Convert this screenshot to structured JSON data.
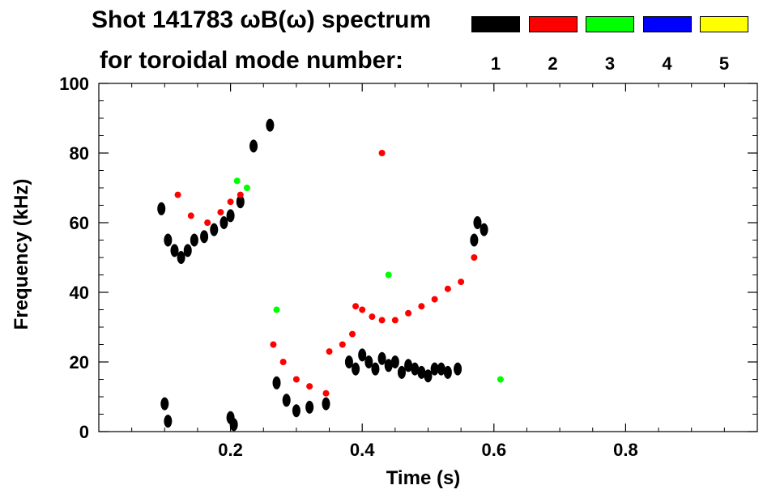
{
  "chart_data": {
    "type": "spectrogram",
    "title": "Shot 141783 ωB(ω) spectrum",
    "subtitle": "for toroidal mode number:",
    "xlabel": "Time (s)",
    "ylabel": "Frequency (kHz)",
    "xlim": [
      0.0,
      1.0
    ],
    "ylim": [
      0,
      100
    ],
    "xticks": [
      "0.2",
      "0.4",
      "0.6",
      "0.8"
    ],
    "xtick_values": [
      0.2,
      0.4,
      0.6,
      0.8
    ],
    "yticks": [
      "0",
      "20",
      "40",
      "60",
      "80",
      "100"
    ],
    "ytick_values": [
      0,
      20,
      40,
      60,
      80,
      100
    ],
    "legend": [
      {
        "label": "1",
        "color": "#000000"
      },
      {
        "label": "2",
        "color": "#ff0000"
      },
      {
        "label": "3",
        "color": "#00ff00"
      },
      {
        "label": "4",
        "color": "#0000ff"
      },
      {
        "label": "5",
        "color": "#ffff00"
      }
    ],
    "series": [
      {
        "name": "1",
        "color": "#000000",
        "points": [
          [
            0.095,
            64
          ],
          [
            0.105,
            55
          ],
          [
            0.115,
            52
          ],
          [
            0.125,
            50
          ],
          [
            0.135,
            52
          ],
          [
            0.145,
            55
          ],
          [
            0.16,
            56
          ],
          [
            0.175,
            58
          ],
          [
            0.19,
            60
          ],
          [
            0.2,
            62
          ],
          [
            0.215,
            66
          ],
          [
            0.235,
            82
          ],
          [
            0.26,
            88
          ],
          [
            0.27,
            14
          ],
          [
            0.285,
            9
          ],
          [
            0.3,
            6
          ],
          [
            0.32,
            7
          ],
          [
            0.345,
            8
          ],
          [
            0.38,
            20
          ],
          [
            0.39,
            18
          ],
          [
            0.4,
            22
          ],
          [
            0.41,
            20
          ],
          [
            0.42,
            18
          ],
          [
            0.43,
            21
          ],
          [
            0.44,
            19
          ],
          [
            0.45,
            20
          ],
          [
            0.46,
            17
          ],
          [
            0.47,
            19
          ],
          [
            0.48,
            18
          ],
          [
            0.49,
            17
          ],
          [
            0.5,
            16
          ],
          [
            0.51,
            18
          ],
          [
            0.52,
            18
          ],
          [
            0.53,
            17
          ],
          [
            0.545,
            18
          ],
          [
            0.57,
            55
          ],
          [
            0.575,
            60
          ],
          [
            0.585,
            58
          ],
          [
            0.1,
            8
          ],
          [
            0.105,
            3
          ],
          [
            0.2,
            4
          ],
          [
            0.205,
            2
          ]
        ]
      },
      {
        "name": "2",
        "color": "#ff0000",
        "points": [
          [
            0.12,
            68
          ],
          [
            0.14,
            62
          ],
          [
            0.165,
            60
          ],
          [
            0.185,
            63
          ],
          [
            0.2,
            66
          ],
          [
            0.215,
            68
          ],
          [
            0.265,
            25
          ],
          [
            0.28,
            20
          ],
          [
            0.3,
            15
          ],
          [
            0.32,
            13
          ],
          [
            0.345,
            11
          ],
          [
            0.35,
            23
          ],
          [
            0.37,
            25
          ],
          [
            0.385,
            28
          ],
          [
            0.39,
            36
          ],
          [
            0.4,
            35
          ],
          [
            0.415,
            33
          ],
          [
            0.43,
            32
          ],
          [
            0.45,
            32
          ],
          [
            0.47,
            34
          ],
          [
            0.49,
            36
          ],
          [
            0.51,
            38
          ],
          [
            0.53,
            41
          ],
          [
            0.55,
            43
          ],
          [
            0.57,
            50
          ],
          [
            0.43,
            80
          ]
        ]
      },
      {
        "name": "3",
        "color": "#00ff00",
        "points": [
          [
            0.21,
            72
          ],
          [
            0.225,
            70
          ],
          [
            0.27,
            35
          ],
          [
            0.44,
            45
          ],
          [
            0.61,
            15
          ]
        ]
      },
      {
        "name": "4",
        "color": "#0000ff",
        "points": []
      },
      {
        "name": "5",
        "color": "#ffff00",
        "points": []
      }
    ]
  }
}
